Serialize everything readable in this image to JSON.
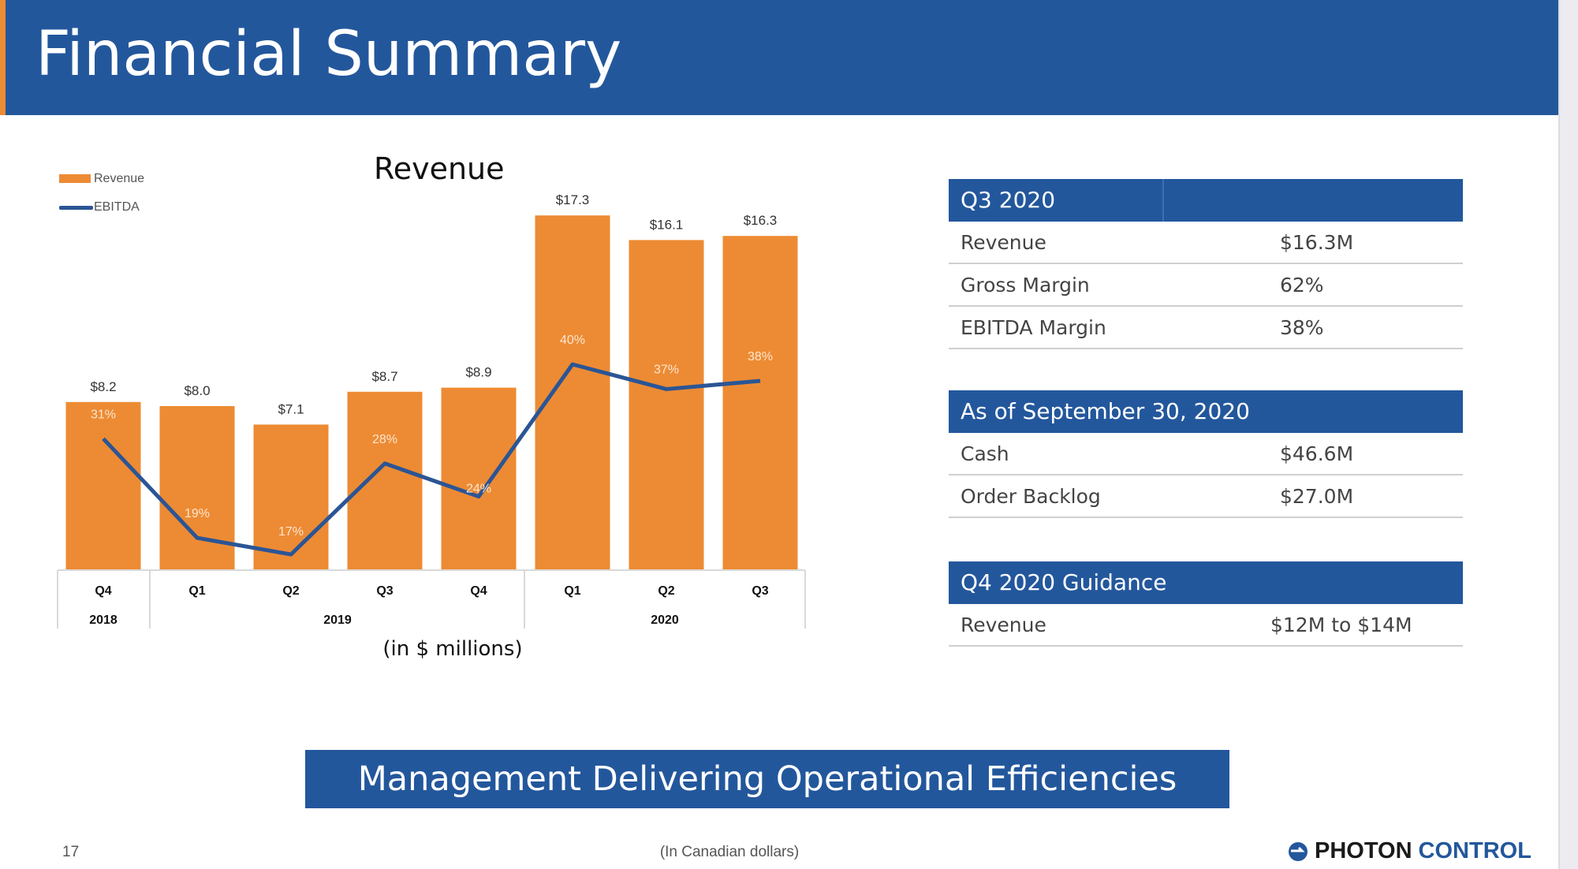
{
  "header": {
    "title": "Financial Summary"
  },
  "chart_data": {
    "type": "bar",
    "title": "Revenue",
    "xlabel": "(in $ millions)",
    "legend": [
      {
        "name": "Revenue",
        "color": "#ed8b34"
      },
      {
        "name": "EBITDA",
        "color": "#2b5595"
      }
    ],
    "categories": [
      "Q4",
      "Q1",
      "Q2",
      "Q3",
      "Q4",
      "Q1",
      "Q2",
      "Q3"
    ],
    "years": [
      {
        "label": "2018",
        "span": 1
      },
      {
        "label": "2019",
        "span": 4
      },
      {
        "label": "2020",
        "span": 3
      }
    ],
    "series": [
      {
        "name": "Revenue",
        "type": "bar",
        "values": [
          8.2,
          8.0,
          7.1,
          8.7,
          8.9,
          17.3,
          16.1,
          16.3
        ],
        "labels": [
          "$8.2",
          "$8.0",
          "$7.1",
          "$8.7",
          "$8.9",
          "$17.3",
          "$16.1",
          "$16.3"
        ]
      },
      {
        "name": "EBITDA",
        "type": "line",
        "values": [
          31,
          19,
          17,
          28,
          24,
          40,
          37,
          38
        ],
        "labels": [
          "31%",
          "19%",
          "17%",
          "28%",
          "24%",
          "40%",
          "37%",
          "38%"
        ]
      }
    ]
  },
  "tables": [
    {
      "header": "Q3 2020",
      "rows": [
        {
          "label": "Revenue",
          "value": "$16.3M"
        },
        {
          "label": "Gross Margin",
          "value": "62%"
        },
        {
          "label": "EBITDA Margin",
          "value": "38%"
        }
      ]
    },
    {
      "header": "As of September 30, 2020",
      "rows": [
        {
          "label": "Cash",
          "value": "$46.6M"
        },
        {
          "label": "Order Backlog",
          "value": "$27.0M"
        }
      ]
    },
    {
      "header": "Q4 2020 Guidance",
      "rows": [
        {
          "label": "Revenue",
          "value": "$12M to $14M"
        }
      ]
    }
  ],
  "banner": "Management Delivering Operational Efficiencies",
  "footer": {
    "page": "17",
    "note": "(In Canadian dollars)",
    "logo_a": "PHOTON",
    "logo_b": "CONTROL"
  },
  "colors": {
    "brand": "#23579c",
    "accent": "#ed8b34",
    "line": "#2b5595"
  }
}
